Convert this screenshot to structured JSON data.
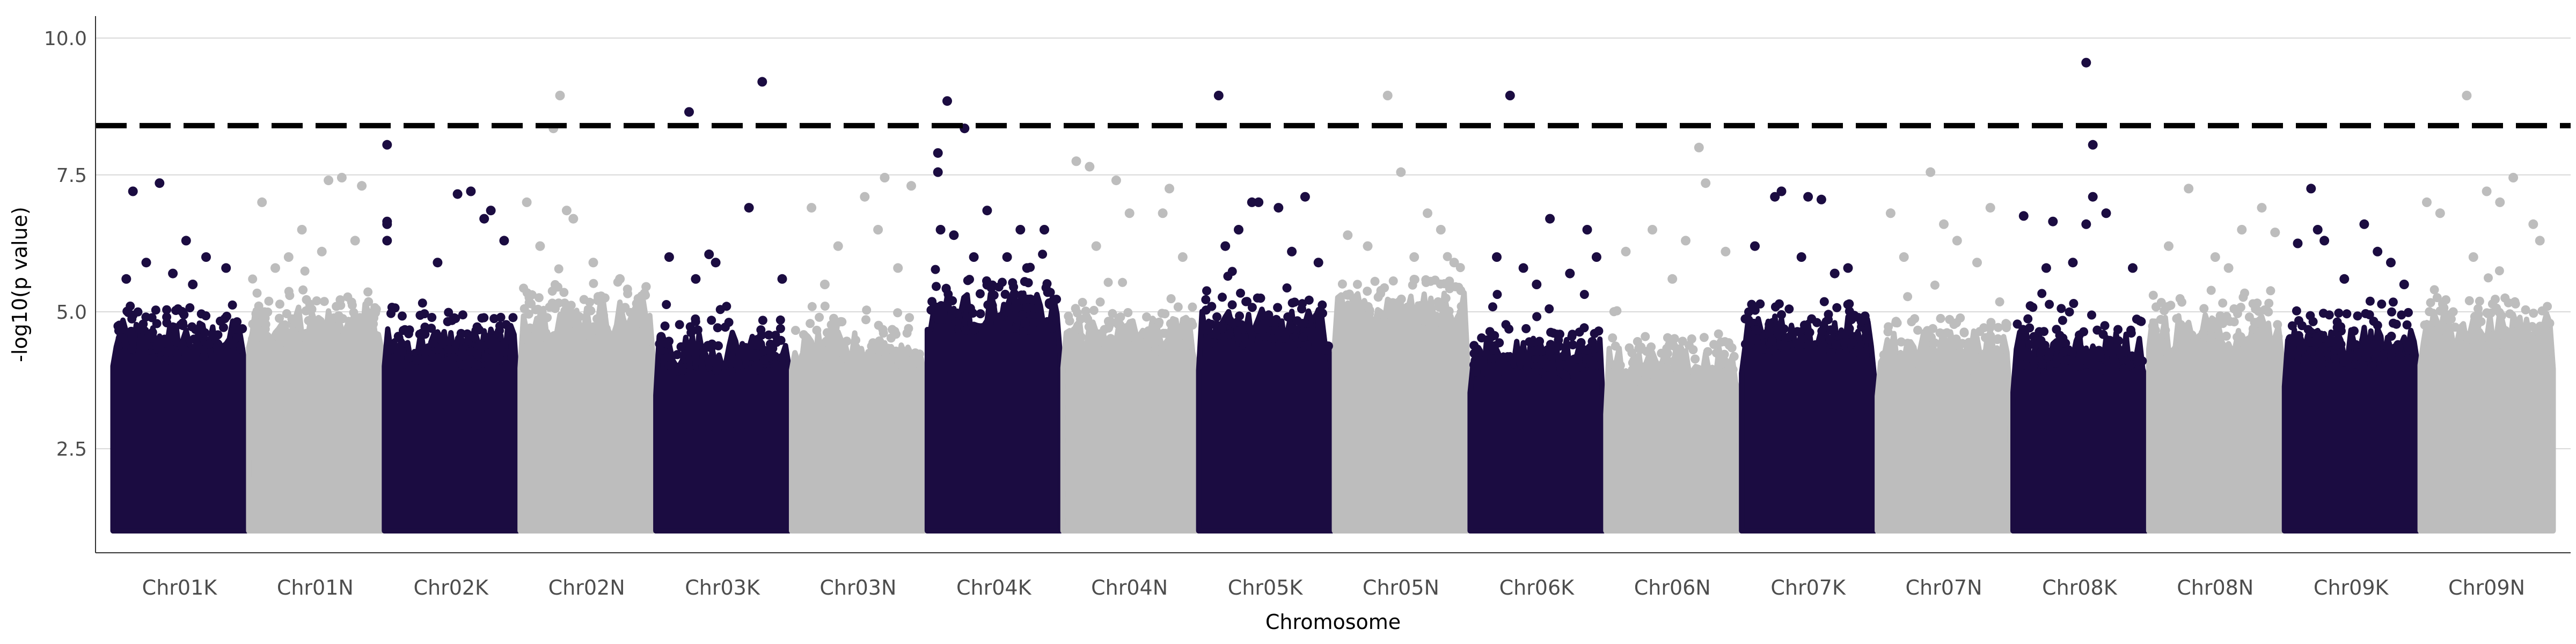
{
  "chart_data": {
    "type": "scatter",
    "subtype": "manhattan",
    "title": "",
    "xlabel": "Chromosome",
    "ylabel": "-log10(p value)",
    "ylim": [
      0.6,
      10.4
    ],
    "yticks": [
      2.5,
      5.0,
      7.5,
      10.0
    ],
    "ytick_labels": [
      "2.5",
      "5.0",
      "7.5",
      "10.0"
    ],
    "grid": "horizontal major gridlines only",
    "legend": "none",
    "colors": {
      "dark": "#1b0c41",
      "light": "#bdbdbd",
      "threshold": "#000000",
      "grid": "#d9d9d9"
    },
    "threshold": {
      "value": 8.4,
      "style": "dashed"
    },
    "baseline": 1.0,
    "categories": [
      "Chr01K",
      "Chr01N",
      "Chr02K",
      "Chr02N",
      "Chr03K",
      "Chr03N",
      "Chr04K",
      "Chr04N",
      "Chr05K",
      "Chr05N",
      "Chr06K",
      "Chr06N",
      "Chr07K",
      "Chr07N",
      "Chr08K",
      "Chr08N",
      "Chr09K",
      "Chr09N"
    ],
    "series_colors": [
      "dark",
      "light",
      "dark",
      "light",
      "dark",
      "light",
      "dark",
      "light",
      "dark",
      "light",
      "dark",
      "light",
      "dark",
      "light",
      "dark",
      "light",
      "dark",
      "light"
    ],
    "dense_top": [
      4.5,
      4.8,
      4.4,
      4.9,
      4.3,
      4.3,
      5.0,
      4.6,
      4.7,
      5.0,
      4.2,
      4.0,
      4.6,
      4.3,
      4.3,
      4.6,
      4.4,
      4.7
    ],
    "peaks": [
      {
        "chromosome": "Chr01K",
        "points": [
          [
            0.15,
            7.2
          ],
          [
            0.35,
            7.35
          ],
          [
            0.55,
            6.3
          ],
          [
            0.7,
            6.0
          ],
          [
            0.25,
            5.9
          ],
          [
            0.45,
            5.7
          ],
          [
            0.85,
            5.8
          ],
          [
            0.1,
            5.6
          ],
          [
            0.6,
            5.5
          ]
        ]
      },
      {
        "chromosome": "Chr01N",
        "points": [
          [
            0.1,
            7.0
          ],
          [
            0.6,
            7.4
          ],
          [
            0.7,
            7.45
          ],
          [
            0.85,
            7.3
          ],
          [
            0.4,
            6.5
          ],
          [
            0.8,
            6.3
          ],
          [
            0.3,
            6.0
          ],
          [
            0.55,
            6.1
          ],
          [
            0.2,
            5.8
          ]
        ]
      },
      {
        "chromosome": "Chr02K",
        "points": [
          [
            0.02,
            8.05
          ],
          [
            0.02,
            6.65
          ],
          [
            0.02,
            6.6
          ],
          [
            0.02,
            6.3
          ],
          [
            0.55,
            7.15
          ],
          [
            0.65,
            7.2
          ],
          [
            0.75,
            6.7
          ],
          [
            0.8,
            6.85
          ],
          [
            0.4,
            5.9
          ],
          [
            0.9,
            6.3
          ]
        ]
      },
      {
        "chromosome": "Chr02N",
        "points": [
          [
            0.3,
            8.95
          ],
          [
            0.25,
            8.35
          ],
          [
            0.05,
            7.0
          ],
          [
            0.35,
            6.85
          ],
          [
            0.4,
            6.7
          ],
          [
            0.15,
            6.2
          ],
          [
            0.55,
            5.9
          ],
          [
            0.75,
            5.6
          ]
        ]
      },
      {
        "chromosome": "Chr03K",
        "points": [
          [
            0.25,
            8.65
          ],
          [
            0.8,
            9.2
          ],
          [
            0.7,
            6.9
          ],
          [
            0.1,
            6.0
          ],
          [
            0.4,
            6.05
          ],
          [
            0.45,
            5.9
          ],
          [
            0.95,
            5.6
          ],
          [
            0.3,
            5.6
          ]
        ]
      },
      {
        "chromosome": "Chr03N",
        "points": [
          [
            0.7,
            7.45
          ],
          [
            0.9,
            7.3
          ],
          [
            0.55,
            7.1
          ],
          [
            0.15,
            6.9
          ],
          [
            0.35,
            6.2
          ],
          [
            0.65,
            6.5
          ],
          [
            0.8,
            5.8
          ],
          [
            0.25,
            5.5
          ]
        ]
      },
      {
        "chromosome": "Chr04K",
        "points": [
          [
            0.15,
            8.85
          ],
          [
            0.28,
            8.35
          ],
          [
            0.08,
            7.9
          ],
          [
            0.08,
            7.55
          ],
          [
            0.45,
            6.85
          ],
          [
            0.7,
            6.5
          ],
          [
            0.88,
            6.5
          ],
          [
            0.1,
            6.5
          ],
          [
            0.2,
            6.4
          ],
          [
            0.35,
            6.0
          ],
          [
            0.6,
            6.0
          ],
          [
            0.75,
            5.8
          ]
        ]
      },
      {
        "chromosome": "Chr04N",
        "points": [
          [
            0.1,
            7.75
          ],
          [
            0.2,
            7.65
          ],
          [
            0.4,
            7.4
          ],
          [
            0.75,
            6.8
          ],
          [
            0.8,
            7.25
          ],
          [
            0.5,
            6.8
          ],
          [
            0.25,
            6.2
          ],
          [
            0.9,
            6.0
          ]
        ]
      },
      {
        "chromosome": "Chr05K",
        "points": [
          [
            0.15,
            8.95
          ],
          [
            0.4,
            7.0
          ],
          [
            0.45,
            7.0
          ],
          [
            0.6,
            6.9
          ],
          [
            0.8,
            7.1
          ],
          [
            0.3,
            6.5
          ],
          [
            0.2,
            6.2
          ],
          [
            0.7,
            6.1
          ],
          [
            0.9,
            5.9
          ]
        ]
      },
      {
        "chromosome": "Chr05N",
        "points": [
          [
            0.4,
            8.95
          ],
          [
            0.5,
            7.55
          ],
          [
            0.1,
            6.4
          ],
          [
            0.7,
            6.8
          ],
          [
            0.8,
            6.5
          ],
          [
            0.25,
            6.2
          ],
          [
            0.6,
            6.0
          ],
          [
            0.9,
            5.9
          ]
        ]
      },
      {
        "chromosome": "Chr06K",
        "points": [
          [
            0.3,
            8.95
          ],
          [
            0.6,
            6.7
          ],
          [
            0.88,
            6.5
          ],
          [
            0.2,
            6.0
          ],
          [
            0.4,
            5.8
          ],
          [
            0.75,
            5.7
          ],
          [
            0.95,
            6.0
          ],
          [
            0.5,
            5.5
          ]
        ]
      },
      {
        "chromosome": "Chr06N",
        "points": [
          [
            0.7,
            8.0
          ],
          [
            0.75,
            7.35
          ],
          [
            0.35,
            6.5
          ],
          [
            0.9,
            6.1
          ],
          [
            0.15,
            6.1
          ],
          [
            0.6,
            6.3
          ],
          [
            0.5,
            5.6
          ]
        ]
      },
      {
        "chromosome": "Chr07K",
        "points": [
          [
            0.3,
            7.2
          ],
          [
            0.5,
            7.1
          ],
          [
            0.6,
            7.05
          ],
          [
            0.25,
            7.1
          ],
          [
            0.1,
            6.2
          ],
          [
            0.45,
            6.0
          ],
          [
            0.8,
            5.8
          ],
          [
            0.7,
            5.7
          ]
        ]
      },
      {
        "chromosome": "Chr07N",
        "points": [
          [
            0.4,
            7.55
          ],
          [
            0.5,
            6.6
          ],
          [
            0.6,
            6.3
          ],
          [
            0.85,
            6.9
          ],
          [
            0.2,
            6.0
          ],
          [
            0.1,
            6.8
          ],
          [
            0.75,
            5.9
          ]
        ]
      },
      {
        "chromosome": "Chr08K",
        "points": [
          [
            0.55,
            9.55
          ],
          [
            0.6,
            8.05
          ],
          [
            0.08,
            6.75
          ],
          [
            0.3,
            6.65
          ],
          [
            0.55,
            6.6
          ],
          [
            0.6,
            7.1
          ],
          [
            0.7,
            6.8
          ],
          [
            0.45,
            5.9
          ],
          [
            0.9,
            5.8
          ],
          [
            0.25,
            5.8
          ]
        ]
      },
      {
        "chromosome": "Chr08N",
        "points": [
          [
            0.3,
            7.25
          ],
          [
            0.85,
            6.9
          ],
          [
            0.95,
            6.45
          ],
          [
            0.15,
            6.2
          ],
          [
            0.5,
            6.0
          ],
          [
            0.7,
            6.5
          ],
          [
            0.6,
            5.8
          ]
        ]
      },
      {
        "chromosome": "Chr09K",
        "points": [
          [
            0.2,
            7.25
          ],
          [
            0.1,
            6.25
          ],
          [
            0.25,
            6.5
          ],
          [
            0.3,
            6.3
          ],
          [
            0.6,
            6.6
          ],
          [
            0.7,
            6.1
          ],
          [
            0.8,
            5.9
          ],
          [
            0.45,
            5.6
          ],
          [
            0.9,
            5.5
          ]
        ]
      },
      {
        "chromosome": "Chr09N",
        "points": [
          [
            0.35,
            8.95
          ],
          [
            0.05,
            7.0
          ],
          [
            0.15,
            6.8
          ],
          [
            0.5,
            7.2
          ],
          [
            0.6,
            7.0
          ],
          [
            0.7,
            7.45
          ],
          [
            0.85,
            6.6
          ],
          [
            0.4,
            6.0
          ],
          [
            0.9,
            6.3
          ]
        ]
      }
    ]
  }
}
